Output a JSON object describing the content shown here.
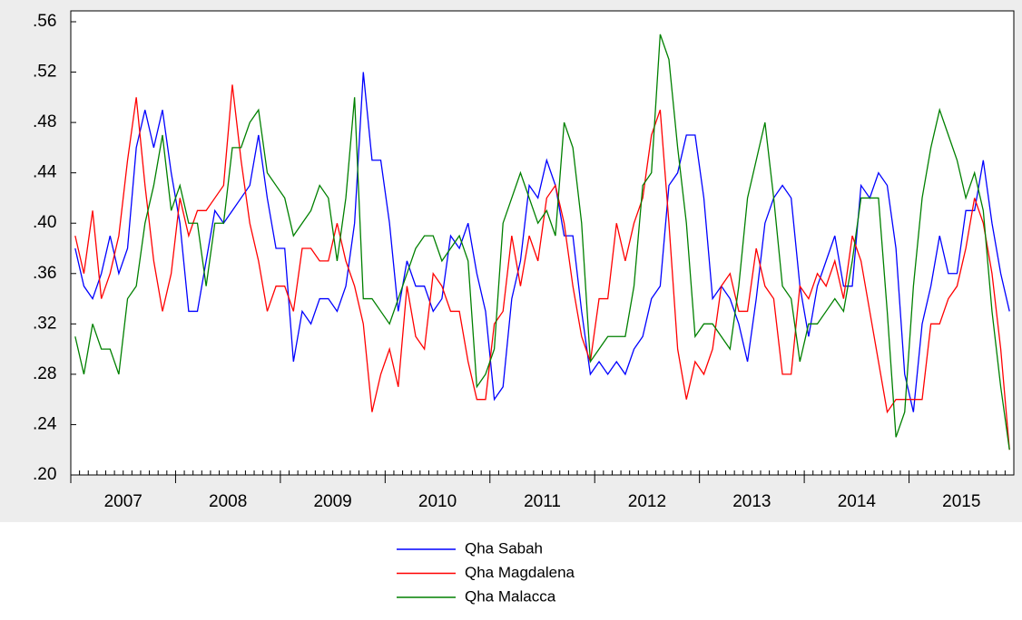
{
  "chart_data": {
    "type": "line",
    "categories": [
      "2007",
      null,
      null,
      null,
      null,
      null,
      null,
      null,
      null,
      null,
      null,
      null,
      "2008",
      null,
      null,
      null,
      null,
      null,
      null,
      null,
      null,
      null,
      null,
      null,
      "2009",
      null,
      null,
      null,
      null,
      null,
      null,
      null,
      null,
      null,
      null,
      null,
      "2010",
      null,
      null,
      null,
      null,
      null,
      null,
      null,
      null,
      null,
      null,
      null,
      "2011",
      null,
      null,
      null,
      null,
      null,
      null,
      null,
      null,
      null,
      null,
      null,
      "2012",
      null,
      null,
      null,
      null,
      null,
      null,
      null,
      null,
      null,
      null,
      null,
      "2013",
      null,
      null,
      null,
      null,
      null,
      null,
      null,
      null,
      null,
      null,
      null,
      "2014",
      null,
      null,
      null,
      null,
      null,
      null,
      null,
      null,
      null,
      null,
      null,
      "2015",
      null,
      null,
      null,
      null,
      null,
      null,
      null,
      null,
      null,
      null,
      null
    ],
    "ylim": [
      0.2,
      0.56
    ],
    "yticks": [
      {
        "value": 0.2,
        "label": ".20"
      },
      {
        "value": 0.24,
        "label": ".24"
      },
      {
        "value": 0.28,
        "label": ".28"
      },
      {
        "value": 0.32,
        "label": ".32"
      },
      {
        "value": 0.36,
        "label": ".36"
      },
      {
        "value": 0.4,
        "label": ".40"
      },
      {
        "value": 0.44,
        "label": ".44"
      },
      {
        "value": 0.48,
        "label": ".48"
      },
      {
        "value": 0.52,
        "label": ".52"
      },
      {
        "value": 0.56,
        "label": ".56"
      }
    ],
    "series": [
      {
        "name": "Qha Sabah",
        "color": "#0000ff",
        "values": [
          0.38,
          0.35,
          0.34,
          0.36,
          0.39,
          0.36,
          0.38,
          0.46,
          0.49,
          0.46,
          0.49,
          0.44,
          0.4,
          0.33,
          0.33,
          0.37,
          0.41,
          0.4,
          0.41,
          0.42,
          0.43,
          0.47,
          0.42,
          0.38,
          0.38,
          0.29,
          0.33,
          0.32,
          0.34,
          0.34,
          0.33,
          0.35,
          0.4,
          0.52,
          0.45,
          0.45,
          0.4,
          0.33,
          0.37,
          0.35,
          0.35,
          0.33,
          0.34,
          0.39,
          0.38,
          0.4,
          0.36,
          0.33,
          0.26,
          0.27,
          0.34,
          0.37,
          0.43,
          0.42,
          0.45,
          0.43,
          0.39,
          0.39,
          0.33,
          0.28,
          0.29,
          0.28,
          0.29,
          0.28,
          0.3,
          0.31,
          0.34,
          0.35,
          0.43,
          0.44,
          0.47,
          0.47,
          0.42,
          0.34,
          0.35,
          0.34,
          0.32,
          0.29,
          0.34,
          0.4,
          0.42,
          0.43,
          0.42,
          0.35,
          0.31,
          0.35,
          0.37,
          0.39,
          0.35,
          0.35,
          0.43,
          0.42,
          0.44,
          0.43,
          0.38,
          0.28,
          0.25,
          0.32,
          0.35,
          0.39,
          0.36,
          0.36,
          0.41,
          0.41,
          0.45,
          0.4,
          0.36,
          0.33
        ]
      },
      {
        "name": "Qha Magdalena",
        "color": "#ff0000",
        "values": [
          0.39,
          0.36,
          0.41,
          0.34,
          0.36,
          0.39,
          0.45,
          0.5,
          0.43,
          0.37,
          0.33,
          0.36,
          0.42,
          0.39,
          0.41,
          0.41,
          0.42,
          0.43,
          0.51,
          0.45,
          0.4,
          0.37,
          0.33,
          0.35,
          0.35,
          0.33,
          0.38,
          0.38,
          0.37,
          0.37,
          0.4,
          0.37,
          0.35,
          0.32,
          0.25,
          0.28,
          0.3,
          0.27,
          0.35,
          0.31,
          0.3,
          0.36,
          0.35,
          0.33,
          0.33,
          0.29,
          0.26,
          0.26,
          0.32,
          0.33,
          0.39,
          0.35,
          0.39,
          0.37,
          0.42,
          0.43,
          0.4,
          0.35,
          0.31,
          0.29,
          0.34,
          0.34,
          0.4,
          0.37,
          0.4,
          0.42,
          0.47,
          0.49,
          0.4,
          0.3,
          0.26,
          0.29,
          0.28,
          0.3,
          0.35,
          0.36,
          0.33,
          0.33,
          0.38,
          0.35,
          0.34,
          0.28,
          0.28,
          0.35,
          0.34,
          0.36,
          0.35,
          0.37,
          0.34,
          0.39,
          0.37,
          0.33,
          0.29,
          0.25,
          0.26,
          0.26,
          0.26,
          0.26,
          0.32,
          0.32,
          0.34,
          0.35,
          0.38,
          0.42,
          0.4,
          0.36,
          0.3,
          0.22
        ]
      },
      {
        "name": "Qha Malacca",
        "color": "#008000",
        "values": [
          0.31,
          0.28,
          0.32,
          0.3,
          0.3,
          0.28,
          0.34,
          0.35,
          0.4,
          0.43,
          0.47,
          0.41,
          0.43,
          0.4,
          0.4,
          0.35,
          0.4,
          0.4,
          0.46,
          0.46,
          0.48,
          0.49,
          0.44,
          0.43,
          0.42,
          0.39,
          0.4,
          0.41,
          0.43,
          0.42,
          0.37,
          0.42,
          0.5,
          0.34,
          0.34,
          0.33,
          0.32,
          0.34,
          0.36,
          0.38,
          0.39,
          0.39,
          0.37,
          0.38,
          0.39,
          0.37,
          0.27,
          0.28,
          0.3,
          0.4,
          0.42,
          0.44,
          0.42,
          0.4,
          0.41,
          0.39,
          0.48,
          0.46,
          0.4,
          0.29,
          0.3,
          0.31,
          0.31,
          0.31,
          0.35,
          0.43,
          0.44,
          0.55,
          0.53,
          0.46,
          0.4,
          0.31,
          0.32,
          0.32,
          0.31,
          0.3,
          0.35,
          0.42,
          0.45,
          0.48,
          0.42,
          0.35,
          0.34,
          0.29,
          0.32,
          0.32,
          0.33,
          0.34,
          0.33,
          0.37,
          0.42,
          0.42,
          0.42,
          0.33,
          0.23,
          0.25,
          0.35,
          0.42,
          0.46,
          0.49,
          0.47,
          0.45,
          0.42,
          0.44,
          0.41,
          0.33,
          0.27,
          0.22
        ]
      }
    ]
  }
}
